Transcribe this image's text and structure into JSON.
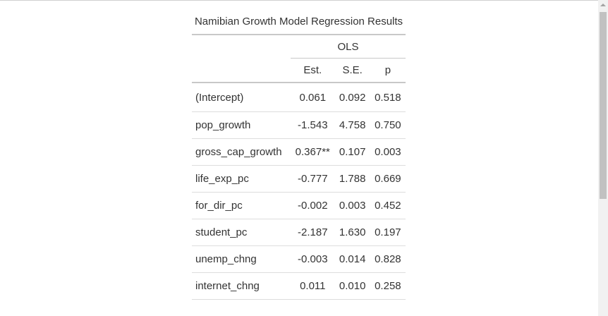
{
  "table": {
    "caption": "Namibian Growth Model Regression Results",
    "group_header": "OLS",
    "columns": [
      "Est.",
      "S.E.",
      "p"
    ],
    "rows": [
      {
        "term": "(Intercept)",
        "est": "0.061",
        "se": "0.092",
        "p": "0.518"
      },
      {
        "term": "pop_growth",
        "est": "-1.543",
        "se": "4.758",
        "p": "0.750"
      },
      {
        "term": "gross_cap_growth",
        "est": "0.367**",
        "se": "0.107",
        "p": "0.003"
      },
      {
        "term": "life_exp_pc",
        "est": "-0.777",
        "se": "1.788",
        "p": "0.669"
      },
      {
        "term": "for_dir_pc",
        "est": "-0.002",
        "se": "0.003",
        "p": "0.452"
      },
      {
        "term": "student_pc",
        "est": "-2.187",
        "se": "1.630",
        "p": "0.197"
      },
      {
        "term": "unemp_chng",
        "est": "-0.003",
        "se": "0.014",
        "p": "0.828"
      },
      {
        "term": "internet_chng",
        "est": "0.011",
        "se": "0.010",
        "p": "0.258"
      }
    ]
  }
}
